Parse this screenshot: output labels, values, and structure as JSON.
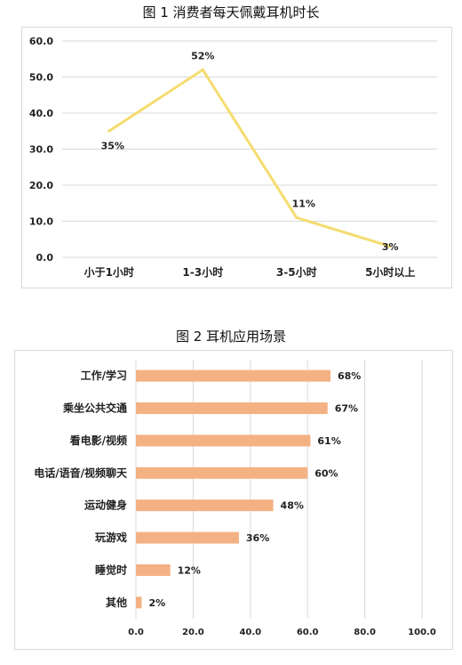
{
  "chart_data": [
    {
      "type": "line",
      "title": "图 1 消费者每天佩戴耳机时长",
      "categories": [
        "小于1小时",
        "1-3小时",
        "3-5小时",
        "5小时以上"
      ],
      "values": [
        35,
        52,
        11,
        3
      ],
      "data_labels": [
        "35%",
        "52%",
        "11%",
        "3%"
      ],
      "ylim": [
        0,
        60
      ],
      "yticks": [
        0,
        10,
        20,
        30,
        40,
        50,
        60
      ],
      "ytick_labels": [
        "0.0",
        "10.0",
        "20.0",
        "30.0",
        "40.0",
        "50.0",
        "60.0"
      ],
      "grid": true,
      "line_color": "#f5dc6e",
      "xlabel": "",
      "ylabel": ""
    },
    {
      "type": "bar",
      "orientation": "horizontal",
      "title": "图 2 耳机应用场景",
      "categories": [
        "工作/学习",
        "乘坐公共交通",
        "看电影/视频",
        "电话/语音/视频聊天",
        "运动健身",
        "玩游戏",
        "睡觉时",
        "其他"
      ],
      "values": [
        68,
        67,
        61,
        60,
        48,
        36,
        12,
        2
      ],
      "data_labels": [
        "68%",
        "67%",
        "61%",
        "60%",
        "48%",
        "36%",
        "12%",
        "2%"
      ],
      "xlim": [
        0,
        100
      ],
      "xticks": [
        0,
        20,
        40,
        60,
        80,
        100
      ],
      "xtick_labels": [
        "0.0",
        "20.0",
        "40.0",
        "60.0",
        "80.0",
        "100.0"
      ],
      "grid": true,
      "bar_color": "#f4b183",
      "xlabel": "",
      "ylabel": ""
    }
  ]
}
